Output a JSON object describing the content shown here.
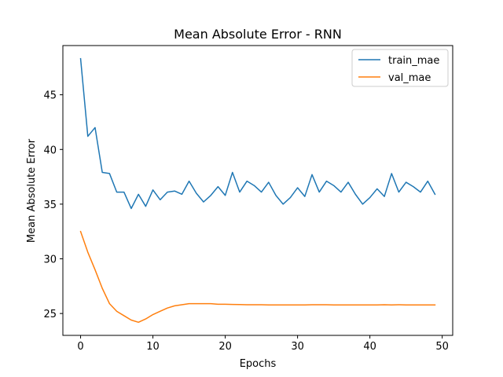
{
  "chart_data": {
    "type": "line",
    "title": "Mean Absolute Error - RNN",
    "xlabel": "Epochs",
    "ylabel": "Mean Absolute Error",
    "xlim": [
      -2.45,
      51.45
    ],
    "ylim": [
      23.0,
      49.5
    ],
    "xticks": [
      0,
      10,
      20,
      30,
      40,
      50
    ],
    "yticks": [
      25,
      30,
      35,
      40,
      45
    ],
    "grid": false,
    "legend_position": "upper right",
    "x": [
      0,
      1,
      2,
      3,
      4,
      5,
      6,
      7,
      8,
      9,
      10,
      11,
      12,
      13,
      14,
      15,
      16,
      17,
      18,
      19,
      20,
      21,
      22,
      23,
      24,
      25,
      26,
      27,
      28,
      29,
      30,
      31,
      32,
      33,
      34,
      35,
      36,
      37,
      38,
      39,
      40,
      41,
      42,
      43,
      44,
      45,
      46,
      47,
      48,
      49
    ],
    "series": [
      {
        "name": "train_mae",
        "color": "#1f77b4",
        "values": [
          48.3,
          41.2,
          42.0,
          37.9,
          37.8,
          36.1,
          36.1,
          34.6,
          35.9,
          34.8,
          36.3,
          35.4,
          36.1,
          36.2,
          35.9,
          37.1,
          36.0,
          35.2,
          35.8,
          36.6,
          35.8,
          37.9,
          36.1,
          37.1,
          36.7,
          36.1,
          37.0,
          35.8,
          35.0,
          35.6,
          36.5,
          35.7,
          37.7,
          36.1,
          37.1,
          36.7,
          36.1,
          37.0,
          35.9,
          35.0,
          35.6,
          36.4,
          35.7,
          37.8,
          36.1,
          37.0,
          36.6,
          36.1,
          37.1,
          35.9
        ]
      },
      {
        "name": "val_mae",
        "color": "#ff7f0e",
        "values": [
          32.5,
          30.6,
          29.0,
          27.3,
          25.9,
          25.2,
          24.8,
          24.4,
          24.2,
          24.5,
          24.9,
          25.2,
          25.5,
          25.7,
          25.8,
          25.9,
          25.9,
          25.9,
          25.9,
          25.85,
          25.85,
          25.83,
          25.82,
          25.8,
          25.8,
          25.8,
          25.78,
          25.78,
          25.78,
          25.78,
          25.78,
          25.78,
          25.8,
          25.8,
          25.8,
          25.78,
          25.78,
          25.78,
          25.78,
          25.78,
          25.78,
          25.78,
          25.8,
          25.78,
          25.8,
          25.78,
          25.78,
          25.78,
          25.78,
          25.78
        ]
      }
    ]
  }
}
